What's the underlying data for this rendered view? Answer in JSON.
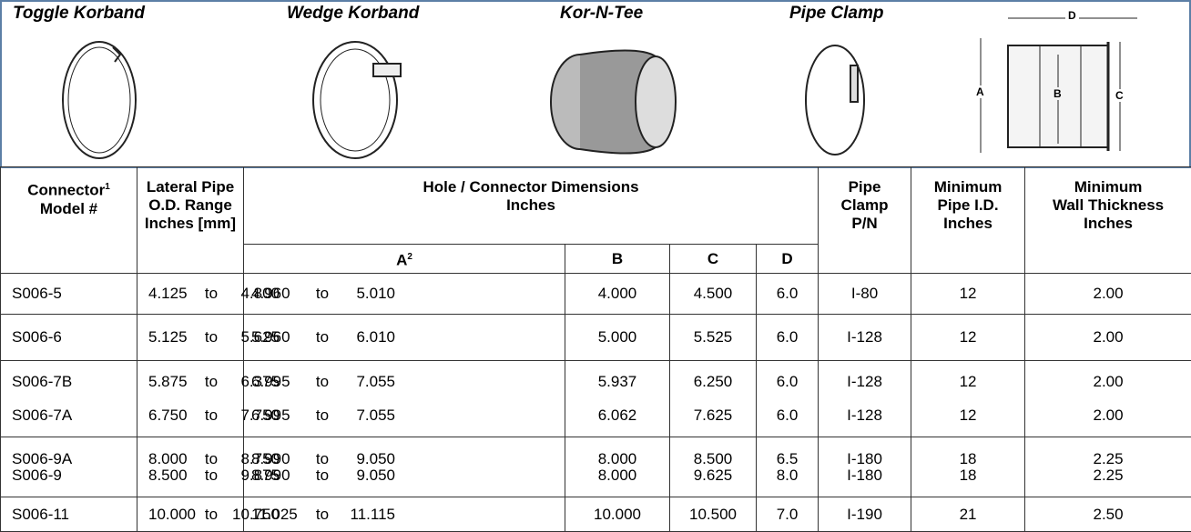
{
  "products": [
    {
      "label": "Toggle Korband"
    },
    {
      "label": "Wedge Korband"
    },
    {
      "label": "Kor-N-Tee"
    },
    {
      "label": "Pipe Clamp"
    }
  ],
  "diagram": {
    "labels": [
      "D",
      "A",
      "B",
      "C"
    ]
  },
  "table": {
    "head": {
      "connector": {
        "lines": [
          "Connector",
          "Model #"
        ],
        "note": "1"
      },
      "lateral": {
        "lines": [
          "Lateral Pipe",
          "O.D. Range",
          "Inches [mm]"
        ]
      },
      "hole": {
        "lines": [
          "Hole / Connector Dimensions",
          "Inches"
        ]
      },
      "a": {
        "text": "A",
        "note": "2"
      },
      "b": "B",
      "c": "C",
      "d": "D",
      "clamp": {
        "lines": [
          "Pipe",
          "Clamp",
          "P/N"
        ]
      },
      "min_id": {
        "lines": [
          "Minimum",
          "Pipe I.D.",
          "Inches"
        ]
      },
      "min_wall": {
        "lines": [
          "Minimum",
          "Wall Thickness",
          "Inches"
        ]
      }
    },
    "groups": [
      [
        [
          "S006-5",
          "4.125",
          "to",
          "4.800",
          "4.960",
          "to",
          "5.010",
          "4.000",
          "4.500",
          "6.0",
          "I-80",
          "12",
          "2.00"
        ]
      ],
      [
        [
          "S006-6",
          "5.125",
          "to",
          "5.625",
          "5.960",
          "to",
          "6.010",
          "5.000",
          "5.525",
          "6.0",
          "I-128",
          "12",
          "2.00"
        ]
      ],
      [
        [
          "S006-7B",
          "5.875",
          "to",
          "6.375",
          "6.995",
          "to",
          "7.055",
          "5.937",
          "6.250",
          "6.0",
          "I-128",
          "12",
          "2.00"
        ],
        [
          "S006-7A",
          "6.750",
          "to",
          "7.750",
          "6.995",
          "to",
          "7.055",
          "6.062",
          "7.625",
          "6.0",
          "I-128",
          "12",
          "2.00"
        ]
      ],
      [
        [
          "S006-9A",
          "8.000",
          "to",
          "8.750",
          "8.990",
          "to",
          "9.050",
          "8.000",
          "8.500",
          "6.5",
          "I-180",
          "18",
          "2.25"
        ],
        [
          "S006-9",
          "8.500",
          "to",
          "9.875",
          "8.990",
          "to",
          "9.050",
          "8.000",
          "9.625",
          "8.0",
          "I-180",
          "18",
          "2.25"
        ]
      ],
      [
        [
          "S006-11",
          "10.000",
          "to",
          "10.750",
          "11.025",
          "to",
          "11.115",
          "10.000",
          "10.500",
          "7.0",
          "I-190",
          "21",
          "2.50"
        ]
      ]
    ]
  }
}
